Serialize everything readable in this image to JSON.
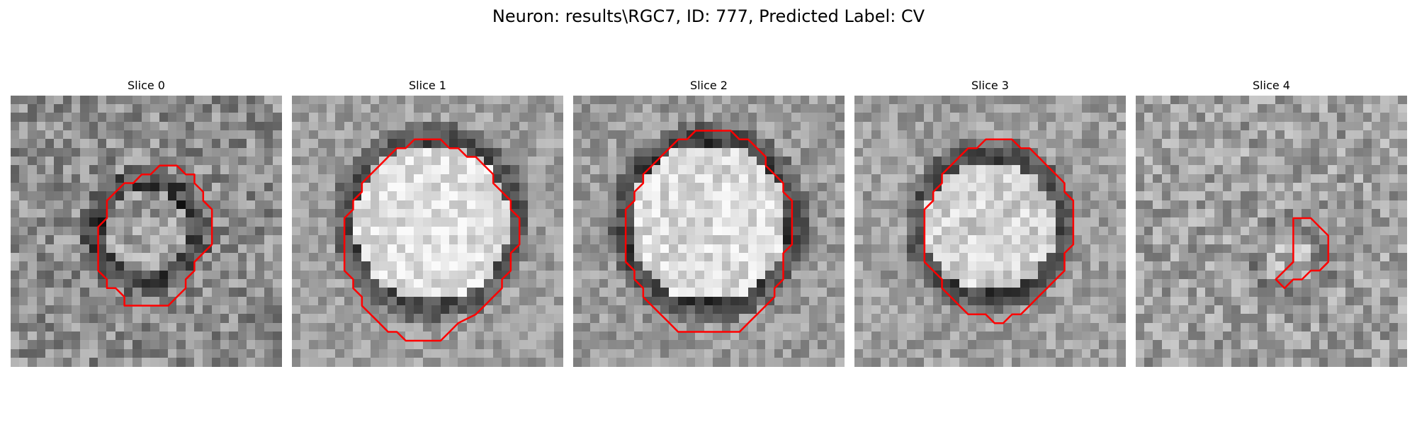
{
  "title": "Neuron: results\\RGC7, ID: 777, Predicted Label: CV",
  "colors": {
    "contour": "#ff0000",
    "background": "#ffffff"
  },
  "colormap": "gray",
  "slices": [
    {
      "title": "Slice 0",
      "image": "grayscale noisy patch, dark ring around faint bright center",
      "overlay": "red contour"
    },
    {
      "title": "Slice 1",
      "image": "grayscale patch with large bright disc and dark rim",
      "overlay": "red contour"
    },
    {
      "title": "Slice 2",
      "image": "grayscale patch with large bright disc and dark rim",
      "overlay": "red contour"
    },
    {
      "title": "Slice 3",
      "image": "grayscale patch with bright disc and dark ring",
      "overlay": "red contour"
    },
    {
      "title": "Slice 4",
      "image": "grayscale noisy patch, faint structure",
      "overlay": "red contour"
    }
  ]
}
